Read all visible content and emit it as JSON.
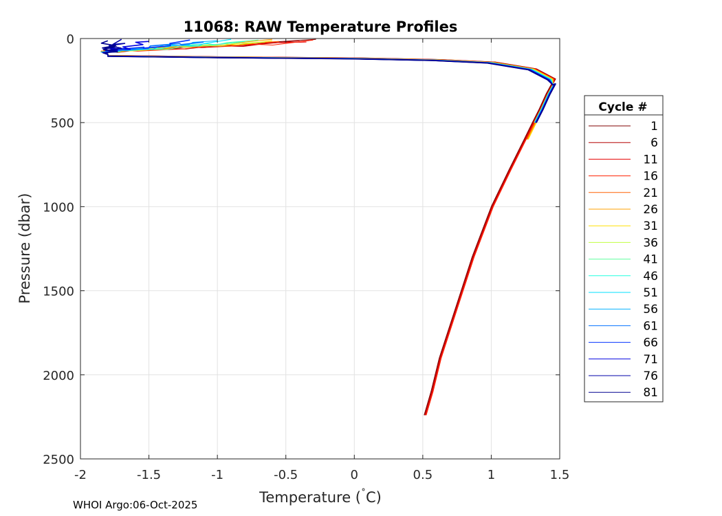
{
  "chart_data": {
    "type": "line",
    "title": "11068: RAW Temperature Profiles",
    "xlabel": "Temperature (˚C)",
    "xlabel_prefix": "Temperature (",
    "xlabel_degree": "˚",
    "xlabel_suffix": "C)",
    "ylabel": "Pressure (dbar)",
    "xlim": [
      -2,
      1.5
    ],
    "ylim": [
      0,
      2500
    ],
    "y_reversed": true,
    "grid": true,
    "xticks": [
      -2,
      -1.5,
      -1,
      -0.5,
      0,
      0.5,
      1,
      1.5
    ],
    "xtick_labels": [
      "-2",
      "-1.5",
      "-1",
      "-0.5",
      "0",
      "0.5",
      "1",
      "1.5"
    ],
    "yticks": [
      0,
      500,
      1000,
      1500,
      2000,
      2500
    ],
    "ytick_labels": [
      "0",
      "500",
      "1000",
      "1500",
      "2000",
      "2500"
    ],
    "legend": {
      "title": "Cycle #",
      "placement": "outside-right",
      "entries": [
        {
          "label": "1",
          "color": "#800000"
        },
        {
          "label": "6",
          "color": "#b30000"
        },
        {
          "label": "11",
          "color": "#e60000"
        },
        {
          "label": "16",
          "color": "#ff2000"
        },
        {
          "label": "21",
          "color": "#ff6000"
        },
        {
          "label": "26",
          "color": "#ffa000"
        },
        {
          "label": "31",
          "color": "#ffe000"
        },
        {
          "label": "36",
          "color": "#c0ff40"
        },
        {
          "label": "41",
          "color": "#60ff9f"
        },
        {
          "label": "46",
          "color": "#20ffdf"
        },
        {
          "label": "51",
          "color": "#00e0ff"
        },
        {
          "label": "56",
          "color": "#00b0ff"
        },
        {
          "label": "61",
          "color": "#0070ff"
        },
        {
          "label": "66",
          "color": "#0030ff"
        },
        {
          "label": "71",
          "color": "#0000e0"
        },
        {
          "label": "76",
          "color": "#0000a8"
        },
        {
          "label": "81",
          "color": "#00008f"
        }
      ]
    },
    "series_shape": {
      "description": "Every cycle follows a shared profile; shallow and mixed-layer segments differ by cycle",
      "deep_profile": [
        {
          "t": 1.44,
          "p": 270
        },
        {
          "t": 1.4,
          "p": 330
        },
        {
          "t": 1.35,
          "p": 420
        },
        {
          "t": 1.3,
          "p": 500
        },
        {
          "t": 1.24,
          "p": 600
        },
        {
          "t": 1.13,
          "p": 780
        },
        {
          "t": 1.0,
          "p": 1000
        },
        {
          "t": 0.86,
          "p": 1300
        },
        {
          "t": 0.74,
          "p": 1600
        },
        {
          "t": 0.62,
          "p": 1900
        },
        {
          "t": 0.56,
          "p": 2100
        },
        {
          "t": 0.51,
          "p": 2240
        }
      ],
      "thermocline": [
        {
          "t": -1.8,
          "p": 100
        },
        {
          "t": -1.0,
          "p": 108
        },
        {
          "t": 0.0,
          "p": 115
        },
        {
          "t": 0.6,
          "p": 125
        },
        {
          "t": 1.0,
          "p": 140
        },
        {
          "t": 1.3,
          "p": 180
        },
        {
          "t": 1.44,
          "p": 240
        },
        {
          "t": 1.45,
          "p": 270
        }
      ],
      "mixed_layer_max_temp_by_cycle": [
        -0.28,
        -0.4,
        -0.35,
        -0.3,
        -0.55,
        -0.6,
        -0.6,
        -0.65,
        -0.7,
        -0.8,
        -0.9,
        -1.0,
        -1.1,
        -1.2,
        -1.5,
        -1.7,
        -1.8
      ]
    }
  },
  "footer": "WHOI Argo:06-Oct-2025"
}
